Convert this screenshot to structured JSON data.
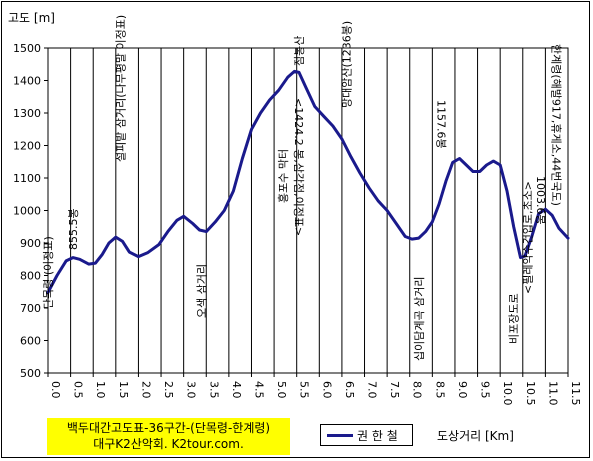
{
  "chart_data": {
    "type": "line",
    "ylabel": "고도 [m]",
    "xlabel": "도상거리 [Km]",
    "title": "백두대간고도표-36구간-(단목령-한계령)",
    "subtitle": "대구K2산악회. K2tour.com.",
    "xlim": [
      0,
      11.5
    ],
    "ylim": [
      500,
      1500
    ],
    "yticks": [
      500,
      600,
      700,
      800,
      900,
      1000,
      1100,
      1200,
      1300,
      1400,
      1500
    ],
    "xticks": [
      "0.0",
      "0.5",
      "1.0",
      "1.5",
      "2.0",
      "2.5",
      "3.0",
      "3.5",
      "4.0",
      "4.5",
      "5.0",
      "5.5",
      "6.0",
      "6.5",
      "7.0",
      "7.5",
      "8.0",
      "8.5",
      "9.0",
      "9.5",
      "10.0",
      "10.5",
      "11.0",
      "11.5"
    ],
    "grid": "vertical",
    "legend_position": "bottom-center",
    "series": [
      {
        "name": "권 한 철",
        "color": "#1a1a8c",
        "x": [
          0.0,
          0.2,
          0.4,
          0.55,
          0.7,
          0.9,
          1.05,
          1.2,
          1.35,
          1.5,
          1.65,
          1.8,
          2.0,
          2.2,
          2.45,
          2.65,
          2.85,
          3.0,
          3.2,
          3.35,
          3.5,
          3.7,
          3.9,
          4.1,
          4.3,
          4.5,
          4.7,
          4.9,
          5.1,
          5.3,
          5.45,
          5.55,
          5.7,
          5.9,
          6.1,
          6.3,
          6.5,
          6.7,
          6.9,
          7.1,
          7.3,
          7.5,
          7.7,
          7.9,
          8.05,
          8.2,
          8.35,
          8.5,
          8.65,
          8.8,
          8.95,
          9.1,
          9.25,
          9.4,
          9.55,
          9.7,
          9.85,
          10.0,
          10.15,
          10.3,
          10.45,
          10.55,
          10.7,
          10.85,
          11.0,
          11.15,
          11.3,
          11.5
        ],
        "y": [
          748,
          800,
          845,
          855,
          850,
          835,
          838,
          865,
          900,
          918,
          905,
          872,
          858,
          870,
          895,
          935,
          970,
          982,
          960,
          940,
          935,
          965,
          1000,
          1060,
          1160,
          1250,
          1300,
          1340,
          1370,
          1410,
          1428,
          1425,
          1380,
          1320,
          1290,
          1260,
          1220,
          1165,
          1115,
          1070,
          1030,
          1000,
          960,
          920,
          912,
          915,
          935,
          965,
          1020,
          1090,
          1148,
          1160,
          1140,
          1120,
          1120,
          1140,
          1152,
          1140,
          1060,
          950,
          855,
          860,
          920,
          990,
          1004,
          985,
          945,
          915
        ]
      }
    ],
    "annotations": [
      "단목령 (이정표)",
      "855.5봉",
      "설피밭 삼거리(나무평말 이정표)",
      "오색 삼거리",
      "홍포수 막터",
      "<1424.2 봉,삼각점,이정표>",
      "점봉산",
      "망대암산(1236봉)",
      "십이담계곡 삼거리",
      "1157.6봉",
      "비포장도로",
      "<필레약수건입로,초소>",
      "1003.6봉",
      "한계령(해발917,휴게소,44번국도)"
    ]
  }
}
